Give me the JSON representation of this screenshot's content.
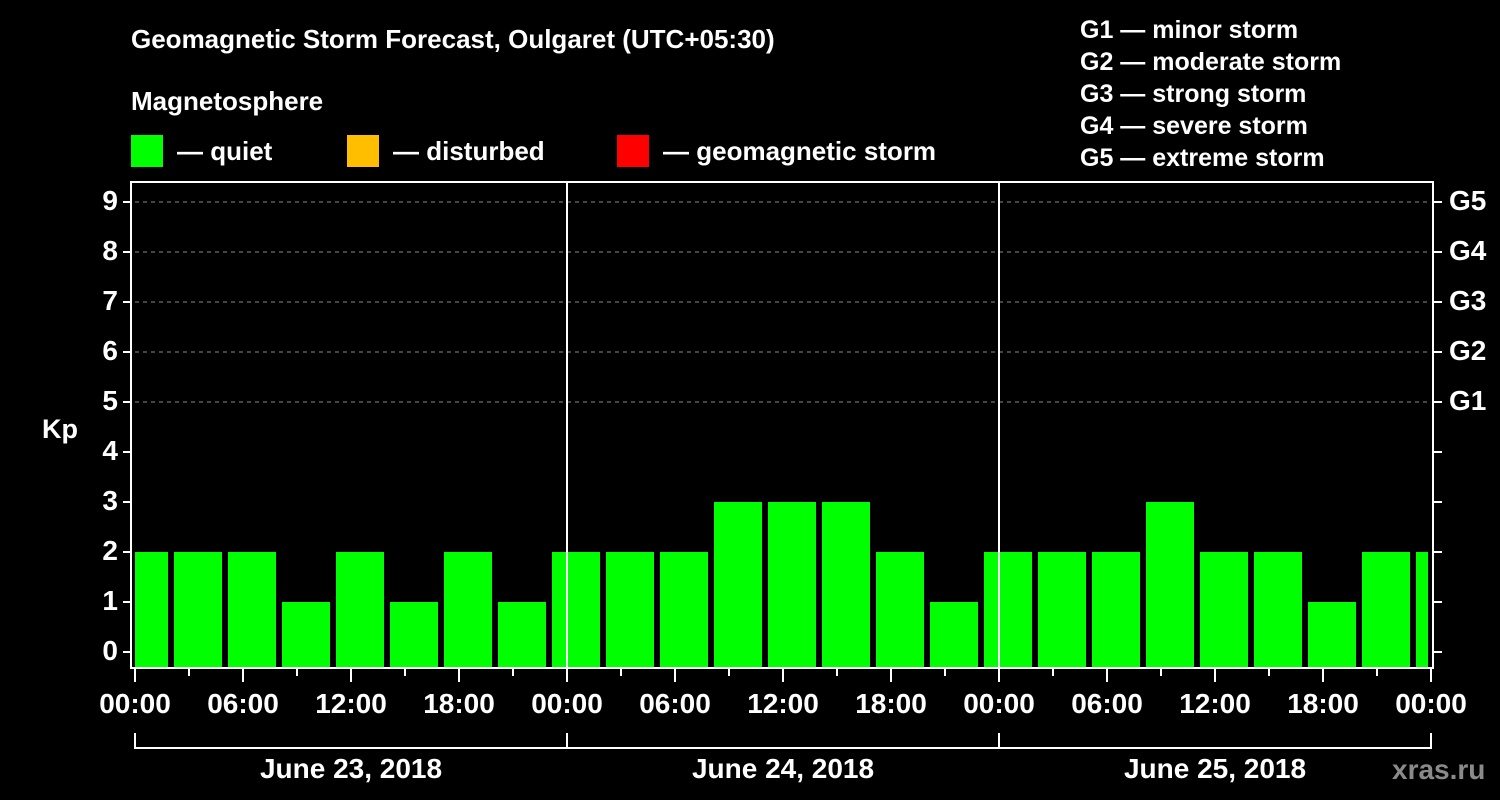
{
  "chart_data": {
    "type": "bar",
    "title": "Geomagnetic Storm Forecast, Oulgaret (UTC+05:30)",
    "subtitle": "Magnetosphere",
    "ylabel": "Kp",
    "xlabel": "",
    "ylim": [
      0,
      9
    ],
    "yticks": [
      0,
      1,
      2,
      3,
      4,
      5,
      6,
      7,
      8,
      9
    ],
    "grid": "dashed horizontal lines at Kp 5-9",
    "legend": [
      {
        "label": "— quiet",
        "color": "#00ff00"
      },
      {
        "label": "— disturbed",
        "color": "#ffbf00"
      },
      {
        "label": "— geomagnetic storm",
        "color": "#ff0000"
      }
    ],
    "right_axis": [
      {
        "kp": 5,
        "label": "G1"
      },
      {
        "kp": 6,
        "label": "G2"
      },
      {
        "kp": 7,
        "label": "G3"
      },
      {
        "kp": 8,
        "label": "G4"
      },
      {
        "kp": 9,
        "label": "G5"
      }
    ],
    "g_scale": [
      "G1 — minor storm",
      "G2 — moderate storm",
      "G3 — strong storm",
      "G4 — severe storm",
      "G5 — extreme storm"
    ],
    "x_tick_labels": [
      "00:00",
      "06:00",
      "12:00",
      "18:00",
      "00:00",
      "06:00",
      "12:00",
      "18:00",
      "00:00",
      "06:00",
      "12:00",
      "18:00",
      "00:00"
    ],
    "dates": [
      "June 23, 2018",
      "June 24, 2018",
      "June 25, 2018"
    ],
    "bar_interval_hours": 3,
    "values": [
      2,
      2,
      2,
      1,
      2,
      1,
      2,
      1,
      2,
      2,
      2,
      3,
      3,
      3,
      2,
      1,
      2,
      2,
      2,
      3,
      2,
      2,
      1,
      2,
      2
    ],
    "bar_colors": "all quiet (#00ff00)"
  },
  "watermark": "xras.ru"
}
